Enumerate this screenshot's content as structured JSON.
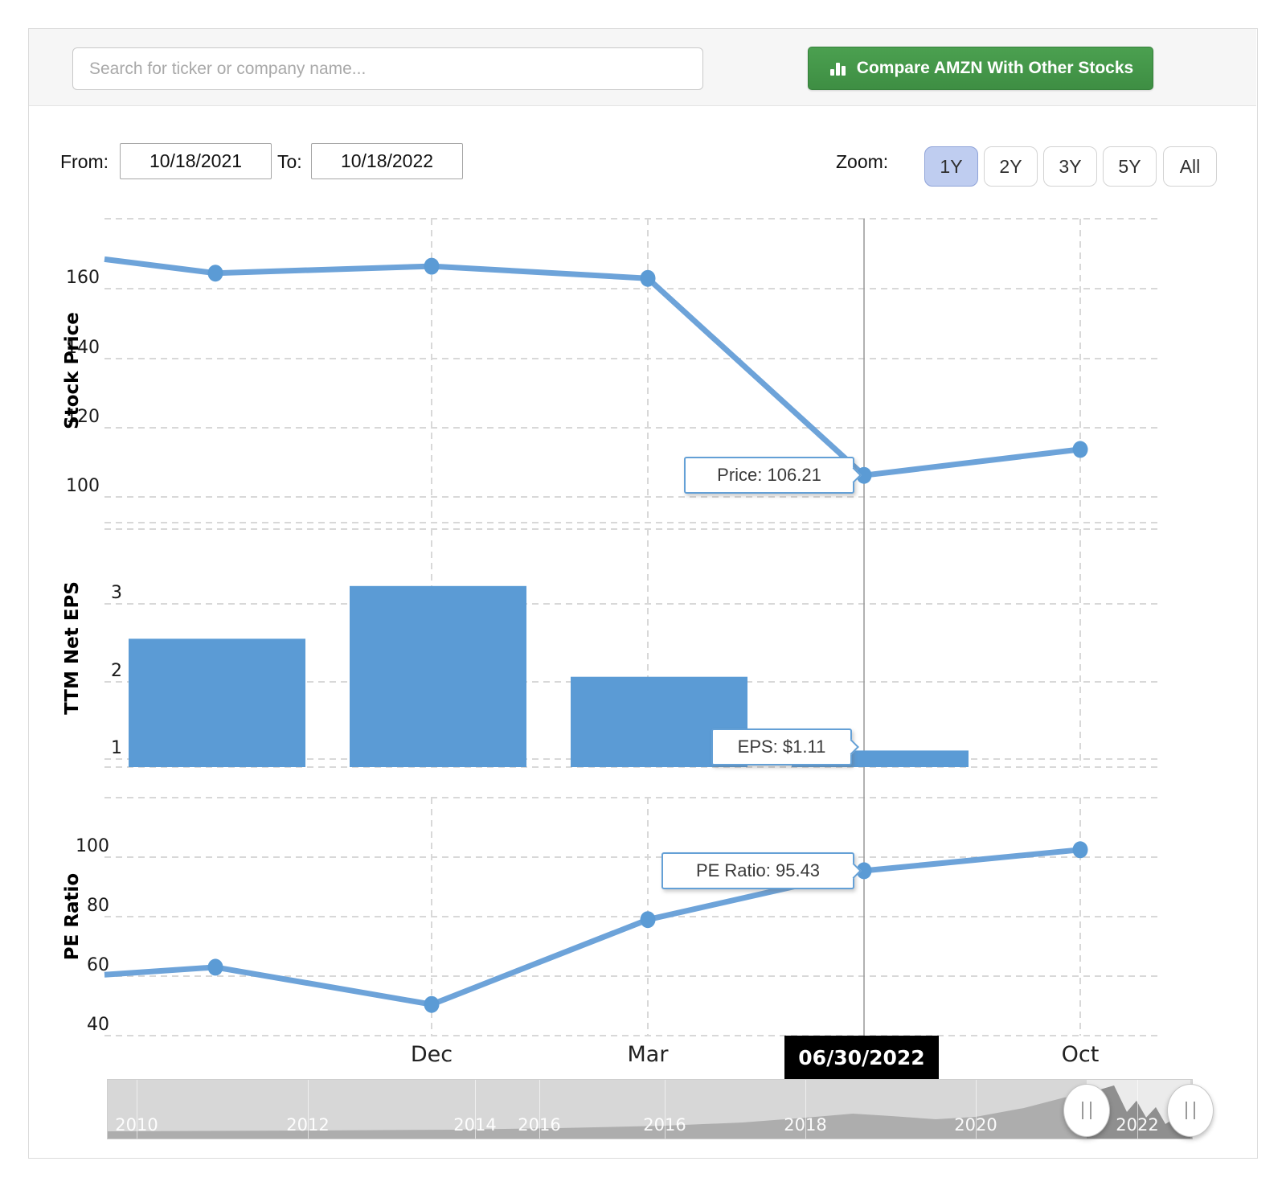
{
  "topbar": {
    "search_placeholder": "Search for ticker or company name...",
    "compare_label": "Compare AMZN With Other Stocks"
  },
  "controls": {
    "from_label": "From:",
    "from_value": "10/18/2021",
    "to_label": "To:",
    "to_value": "10/18/2022",
    "zoom_label": "Zoom:",
    "zoom_options": [
      "1Y",
      "2Y",
      "3Y",
      "5Y",
      "All"
    ],
    "zoom_selected": "1Y"
  },
  "axes": {
    "price_title": "Stock Price",
    "price_ticks": [
      "160",
      "140",
      "120",
      "100"
    ],
    "eps_title": "TTM Net EPS",
    "eps_ticks": [
      "3",
      "2",
      "1"
    ],
    "pe_title": "PE Ratio",
    "pe_ticks": [
      "100",
      "80",
      "60",
      "40"
    ],
    "x_labels": [
      "Dec",
      "Mar",
      "Oct"
    ]
  },
  "tooltips": {
    "price": "Price: 106.21",
    "eps": "EPS: $1.11",
    "pe": "PE Ratio: 95.43",
    "date": "06/30/2022"
  },
  "navigator": {
    "years": [
      "2010",
      "2012",
      "2014",
      "2016",
      "2016",
      "2018",
      "2020",
      "2022"
    ]
  },
  "colors": {
    "accent_blue": "#5b9bd5",
    "line_blue": "#6da3d9",
    "button_green": "#3f9142",
    "zoom_selected_bg": "#bfcdf0",
    "crosshair": "#999999"
  },
  "chart_data": [
    {
      "type": "line",
      "title": "Stock Price",
      "ylabel": "Stock Price",
      "yticks": [
        100,
        120,
        140,
        160
      ],
      "ylim": [
        92,
        180
      ],
      "x_visible_labels": [
        "Dec",
        "Mar",
        "Oct"
      ],
      "values": [
        168.5,
        164.5,
        166.5,
        163,
        106.21,
        113.7
      ],
      "highlight": {
        "date": "06/30/2022",
        "value": 106.21
      }
    },
    {
      "type": "bar",
      "title": "TTM Net EPS",
      "yticks": [
        1,
        2,
        3
      ],
      "ylim": [
        0.9,
        4.1
      ],
      "values": [
        2.55,
        3.23,
        2.06,
        1.11
      ],
      "highlight": {
        "date": "06/30/2022",
        "value": 1.11
      }
    },
    {
      "type": "line",
      "title": "PE Ratio",
      "yticks": [
        40,
        60,
        80,
        100
      ],
      "ylim": [
        38,
        122
      ],
      "values": [
        60.5,
        63,
        50.5,
        79,
        95.43,
        102.5
      ],
      "highlight": {
        "date": "06/30/2022",
        "value": 95.43
      }
    }
  ]
}
